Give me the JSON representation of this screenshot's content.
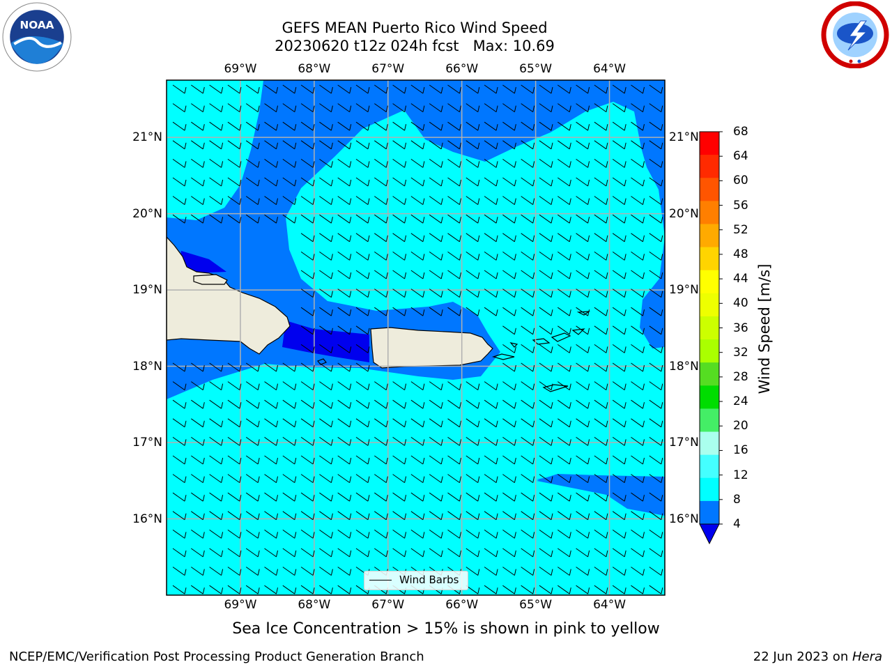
{
  "title": {
    "line1": "GEFS MEAN Puerto Rico Wind Speed",
    "line2": "20230620 t12z 024h fcst   Max: 10.69"
  },
  "logos": {
    "left": "noaa-logo",
    "left_text": "NOAA",
    "right": "nws-logo"
  },
  "map": {
    "longitude_labels": [
      "69°W",
      "68°W",
      "67°W",
      "66°W",
      "65°W",
      "64°W"
    ],
    "latitude_labels": [
      "21°N",
      "20°N",
      "19°N",
      "18°N",
      "17°N",
      "16°N"
    ],
    "extent": {
      "lon": [
        -70.0,
        -63.25
      ],
      "lat": [
        15.0,
        21.75
      ]
    },
    "gridlines": true,
    "colors": {
      "land": "#eeecdc",
      "coast": "#000000",
      "grid": "#b0b0b0"
    },
    "wind_speed_field_ms": {
      "note_bands": "4-8 blue, 8-12 cyan",
      "regions_8_12": [
        "north-west corner",
        "central-north tongue",
        "south of 18°N",
        "east of 66°W"
      ],
      "regions_4_8": [
        "near Hispaniola / Mona Passage",
        "north-central band",
        "far east",
        "south-east near 16.3°N"
      ],
      "regions_below_4": [
        "Mona Passage",
        "north coast of Hispaniola"
      ]
    },
    "wind_barbs": {
      "direction": "easterly",
      "typical_speed_kt": 10
    }
  },
  "colorbar": {
    "title": "Wind Speed [m/s]",
    "ticks": [
      "68",
      "64",
      "60",
      "56",
      "52",
      "48",
      "44",
      "40",
      "36",
      "32",
      "28",
      "24",
      "20",
      "16",
      "12",
      "8",
      "4"
    ],
    "colors": [
      "#ff0000",
      "#ff2a00",
      "#ff5500",
      "#ff7f00",
      "#ffaa00",
      "#ffd400",
      "#ffff00",
      "#eeff00",
      "#ccff00",
      "#aaff00",
      "#55dd22",
      "#00dd00",
      "#44ee66",
      "#aaffee",
      "#44ffff",
      "#00ffff",
      "#0077ff"
    ],
    "under_color": "#0000ee"
  },
  "legend": {
    "label": "Wind Barbs"
  },
  "note": "Sea Ice Concentration > 15% is shown in pink to yellow",
  "footer": {
    "left": "NCEP/EMC/Verification Post Processing Product Generation Branch",
    "right_date": "22 Jun 2023 on ",
    "right_host": "Hera"
  }
}
